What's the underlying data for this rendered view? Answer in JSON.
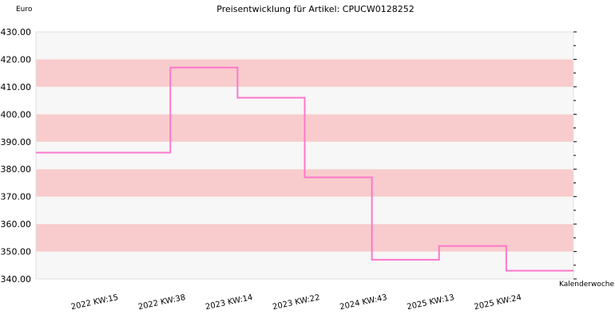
{
  "chart_data": {
    "type": "line",
    "step": true,
    "title": "Preisentwicklung für Artikel: CPUCW0128252",
    "ylabel": "Euro",
    "xlabel": "Kalenderwoche",
    "ylim": [
      340,
      430
    ],
    "yticks": [
      "340.00",
      "350.00",
      "360.00",
      "370.00",
      "380.00",
      "390.00",
      "400.00",
      "410.00",
      "420.00",
      "430.00"
    ],
    "x_tick_labels": [
      "2022 KW:15",
      "2022 KW:38",
      "2023 KW:14",
      "2023 KW:22",
      "2024 KW:43",
      "2025 KW:13",
      "2025 KW:24"
    ],
    "series": [
      {
        "values": [
          386,
          386,
          417,
          406,
          377,
          347,
          352,
          343
        ]
      }
    ],
    "band_colors": [
      "#f7f7f7",
      "#f8cccc"
    ],
    "line_color": "#ff77cc",
    "legend": "none",
    "grid": false
  }
}
